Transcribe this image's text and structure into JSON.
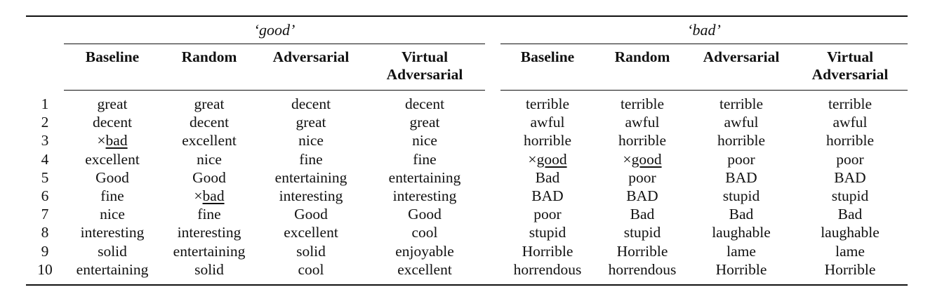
{
  "table": {
    "groups": [
      "‘good’",
      "‘bad’"
    ],
    "headers": {
      "good": [
        "Baseline",
        "Random",
        "Adversarial",
        "Virtual\nAdversarial"
      ],
      "bad": [
        "Baseline",
        "Random",
        "Adversarial",
        "Virtual\nAdversarial"
      ]
    },
    "cross_mark": "×",
    "rows": [
      {
        "rank": "1",
        "good": [
          "great",
          "great",
          "decent",
          "decent"
        ],
        "bad": [
          "terrible",
          "terrible",
          "terrible",
          "terrible"
        ]
      },
      {
        "rank": "2",
        "good": [
          "decent",
          "decent",
          "great",
          "great"
        ],
        "bad": [
          "awful",
          "awful",
          "awful",
          "awful"
        ]
      },
      {
        "rank": "3",
        "good": [
          "bad",
          "excellent",
          "nice",
          "nice"
        ],
        "bad": [
          "horrible",
          "horrible",
          "horrible",
          "horrible"
        ]
      },
      {
        "rank": "4",
        "good": [
          "excellent",
          "nice",
          "fine",
          "fine"
        ],
        "bad": [
          "good",
          "good",
          "poor",
          "poor"
        ]
      },
      {
        "rank": "5",
        "good": [
          "Good",
          "Good",
          "entertaining",
          "entertaining"
        ],
        "bad": [
          "Bad",
          "poor",
          "BAD",
          "BAD"
        ]
      },
      {
        "rank": "6",
        "good": [
          "fine",
          "bad",
          "interesting",
          "interesting"
        ],
        "bad": [
          "BAD",
          "BAD",
          "stupid",
          "stupid"
        ]
      },
      {
        "rank": "7",
        "good": [
          "nice",
          "fine",
          "Good",
          "Good"
        ],
        "bad": [
          "poor",
          "Bad",
          "Bad",
          "Bad"
        ]
      },
      {
        "rank": "8",
        "good": [
          "interesting",
          "interesting",
          "excellent",
          "cool"
        ],
        "bad": [
          "stupid",
          "stupid",
          "laughable",
          "laughable"
        ]
      },
      {
        "rank": "9",
        "good": [
          "solid",
          "entertaining",
          "solid",
          "enjoyable"
        ],
        "bad": [
          "Horrible",
          "Horrible",
          "lame",
          "lame"
        ]
      },
      {
        "rank": "10",
        "good": [
          "entertaining",
          "solid",
          "cool",
          "excellent"
        ],
        "bad": [
          "horrendous",
          "horrendous",
          "Horrible",
          "Horrible"
        ]
      }
    ],
    "marked_cells": [
      {
        "row": 2,
        "side": "good",
        "col": 0
      },
      {
        "row": 5,
        "side": "good",
        "col": 1
      },
      {
        "row": 3,
        "side": "bad",
        "col": 0
      },
      {
        "row": 3,
        "side": "bad",
        "col": 1
      }
    ]
  }
}
